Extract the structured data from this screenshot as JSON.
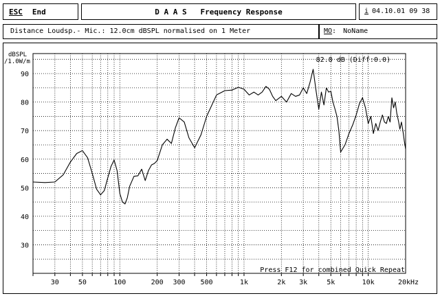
{
  "header": {
    "esc_key": "ESC",
    "esc_label": "End",
    "title": "D A A S   Frequency Response",
    "info_key": "i",
    "date": "04.10.01",
    "time": "09 38"
  },
  "info": {
    "description": "Distance Loudsp.- Mic.: 12.0cm dBSPL normalised on 1 Meter",
    "mem_key": "MO",
    "mem_name": "NoName"
  },
  "chart_data": {
    "type": "line",
    "title": "",
    "ylabel_line1": "dBSPL",
    "ylabel_line2": "/1.0W/m",
    "xlabel": "",
    "readout": "82.8 dB (Diff:0.0)",
    "footer_note": "Press F12 for combined Quick Repeat",
    "x_scale": "log",
    "xlim": [
      20,
      20000
    ],
    "ylim": [
      20,
      97
    ],
    "grid": true,
    "x_ticks": [
      {
        "value": 30,
        "label": "30"
      },
      {
        "value": 50,
        "label": "50"
      },
      {
        "value": 100,
        "label": "100"
      },
      {
        "value": 200,
        "label": "200"
      },
      {
        "value": 300,
        "label": "300"
      },
      {
        "value": 500,
        "label": "500"
      },
      {
        "value": 1000,
        "label": "1k"
      },
      {
        "value": 2000,
        "label": "2k"
      },
      {
        "value": 3000,
        "label": "3k"
      },
      {
        "value": 5000,
        "label": "5k"
      },
      {
        "value": 10000,
        "label": "10k"
      },
      {
        "value": 20000,
        "label": "20kHz"
      }
    ],
    "y_ticks": [
      30,
      40,
      50,
      60,
      70,
      80,
      90
    ],
    "series": [
      {
        "x": [
          20,
          25,
          30,
          35,
          40,
          45,
          50,
          55,
          60,
          65,
          70,
          75,
          80,
          85,
          90,
          95,
          100,
          105,
          110,
          115,
          120,
          130,
          140,
          150,
          160,
          170,
          180,
          190,
          200,
          220,
          240,
          260,
          280,
          300,
          330,
          360,
          400,
          450,
          500,
          600,
          700,
          800,
          900,
          1000,
          1100,
          1200,
          1300,
          1400,
          1500,
          1600,
          1700,
          1800,
          2000,
          2200,
          2400,
          2600,
          2800,
          3000,
          3200,
          3400,
          3600,
          3800,
          4000,
          4200,
          4400,
          4600,
          4800,
          5000,
          5200,
          5400,
          5600,
          5800,
          6000,
          6500,
          7000,
          7500,
          8000,
          8500,
          9000,
          9500,
          10000,
          10500,
          11000,
          11500,
          12000,
          12500,
          13000,
          13500,
          14000,
          14500,
          15000,
          15500,
          16000,
          16500,
          17000,
          17500,
          18000,
          18500,
          19000,
          19500,
          20000
        ],
        "y": [
          52,
          51.8,
          52,
          54.5,
          59,
          62,
          63,
          60.5,
          55,
          49.5,
          47.5,
          49,
          53.5,
          57.5,
          59.7,
          56,
          48,
          45,
          44.3,
          46.5,
          50.5,
          54,
          54.2,
          56.5,
          52.5,
          56,
          58,
          58.5,
          59.5,
          65,
          67,
          65.5,
          71,
          74.5,
          73,
          67.5,
          64,
          68.5,
          75,
          82.5,
          84,
          84.2,
          85.2,
          84.5,
          82.5,
          83.5,
          82.5,
          83.5,
          85.5,
          84.5,
          82,
          80.5,
          82,
          80,
          83,
          82,
          82.5,
          85,
          83,
          87,
          91.5,
          84,
          77.5,
          83.5,
          79,
          85,
          83.5,
          83.8,
          80,
          77.5,
          75,
          70,
          62.5,
          65,
          69,
          72,
          75.5,
          79.5,
          81.5,
          78,
          72.5,
          75,
          69,
          72.5,
          70,
          73,
          75.5,
          73,
          72.5,
          75,
          73,
          81.5,
          78,
          80,
          76,
          73.5,
          70.5,
          73,
          70,
          66.5,
          63.5
        ]
      }
    ]
  }
}
